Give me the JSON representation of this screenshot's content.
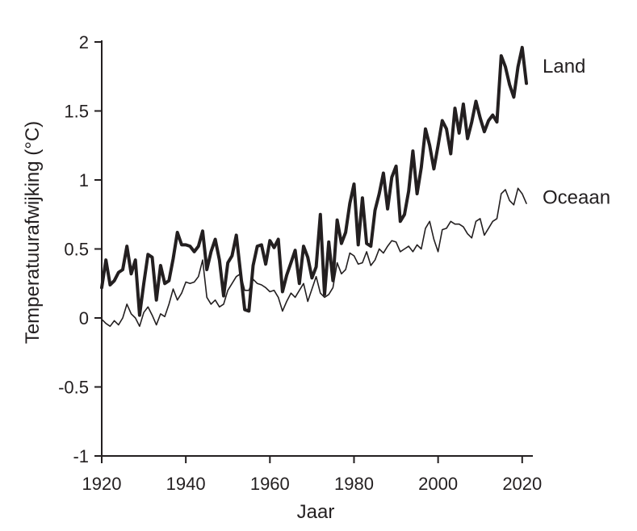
{
  "chart_data": {
    "type": "line",
    "title": "",
    "xlabel": "Jaar",
    "ylabel": "Temperatuurafwijking (°C)",
    "xlim": [
      1920,
      2022
    ],
    "ylim": [
      -1,
      2
    ],
    "x_ticks": [
      1920,
      1940,
      1960,
      1980,
      2000,
      2020
    ],
    "y_ticks": [
      -1,
      -0.5,
      0,
      0.5,
      1,
      1.5,
      2
    ],
    "y_tick_labels": [
      "-1",
      "-0.5",
      "0",
      "0.5",
      "1",
      "1.5",
      "2"
    ],
    "grid": false,
    "x": [
      1920,
      1921,
      1922,
      1923,
      1924,
      1925,
      1926,
      1927,
      1928,
      1929,
      1930,
      1931,
      1932,
      1933,
      1934,
      1935,
      1936,
      1937,
      1938,
      1939,
      1940,
      1941,
      1942,
      1943,
      1944,
      1945,
      1946,
      1947,
      1948,
      1949,
      1950,
      1951,
      1952,
      1953,
      1954,
      1955,
      1956,
      1957,
      1958,
      1959,
      1960,
      1961,
      1962,
      1963,
      1964,
      1965,
      1966,
      1967,
      1968,
      1969,
      1970,
      1971,
      1972,
      1973,
      1974,
      1975,
      1976,
      1977,
      1978,
      1979,
      1980,
      1981,
      1982,
      1983,
      1984,
      1985,
      1986,
      1987,
      1988,
      1989,
      1990,
      1991,
      1992,
      1993,
      1994,
      1995,
      1996,
      1997,
      1998,
      1999,
      2000,
      2001,
      2002,
      2003,
      2004,
      2005,
      2006,
      2007,
      2008,
      2009,
      2010,
      2011,
      2012,
      2013,
      2014,
      2015,
      2016,
      2017,
      2018,
      2019,
      2020,
      2021
    ],
    "series": [
      {
        "name": "Land",
        "line_width": 4,
        "values": [
          0.22,
          0.42,
          0.24,
          0.27,
          0.33,
          0.35,
          0.52,
          0.32,
          0.42,
          0.02,
          0.25,
          0.46,
          0.44,
          0.13,
          0.38,
          0.25,
          0.27,
          0.43,
          0.62,
          0.53,
          0.53,
          0.52,
          0.48,
          0.52,
          0.63,
          0.35,
          0.48,
          0.57,
          0.42,
          0.16,
          0.4,
          0.45,
          0.6,
          0.33,
          0.06,
          0.05,
          0.38,
          0.52,
          0.53,
          0.39,
          0.56,
          0.51,
          0.57,
          0.19,
          0.31,
          0.4,
          0.49,
          0.25,
          0.52,
          0.44,
          0.29,
          0.37,
          0.75,
          0.17,
          0.55,
          0.27,
          0.71,
          0.54,
          0.62,
          0.83,
          0.97,
          0.53,
          0.87,
          0.54,
          0.52,
          0.78,
          0.9,
          1.05,
          0.79,
          1.02,
          1.1,
          0.7,
          0.75,
          0.92,
          1.21,
          0.9,
          1.09,
          1.37,
          1.25,
          1.08,
          1.25,
          1.43,
          1.37,
          1.19,
          1.52,
          1.34,
          1.55,
          1.3,
          1.42,
          1.57,
          1.45,
          1.35,
          1.43,
          1.47,
          1.42,
          1.9,
          1.82,
          1.69,
          1.6,
          1.82,
          1.96,
          1.7
        ]
      },
      {
        "name": "Oceaan",
        "line_width": 1.6,
        "values": [
          -0.01,
          -0.04,
          -0.06,
          -0.02,
          -0.05,
          0.0,
          0.1,
          0.03,
          0.0,
          -0.06,
          0.04,
          0.08,
          0.02,
          -0.05,
          0.03,
          0.01,
          0.1,
          0.21,
          0.13,
          0.18,
          0.26,
          0.25,
          0.26,
          0.3,
          0.42,
          0.15,
          0.1,
          0.13,
          0.08,
          0.1,
          0.2,
          0.25,
          0.3,
          0.32,
          0.2,
          0.2,
          0.28,
          0.25,
          0.24,
          0.22,
          0.19,
          0.2,
          0.15,
          0.05,
          0.12,
          0.18,
          0.15,
          0.2,
          0.25,
          0.12,
          0.21,
          0.3,
          0.18,
          0.15,
          0.17,
          0.22,
          0.4,
          0.32,
          0.35,
          0.47,
          0.45,
          0.39,
          0.4,
          0.48,
          0.38,
          0.42,
          0.5,
          0.47,
          0.52,
          0.56,
          0.55,
          0.48,
          0.5,
          0.52,
          0.48,
          0.53,
          0.5,
          0.65,
          0.7,
          0.57,
          0.48,
          0.64,
          0.65,
          0.7,
          0.68,
          0.68,
          0.66,
          0.61,
          0.58,
          0.7,
          0.72,
          0.6,
          0.65,
          0.7,
          0.72,
          0.9,
          0.93,
          0.85,
          0.82,
          0.94,
          0.9,
          0.83
        ]
      }
    ],
    "legend": "right-of-lines"
  }
}
